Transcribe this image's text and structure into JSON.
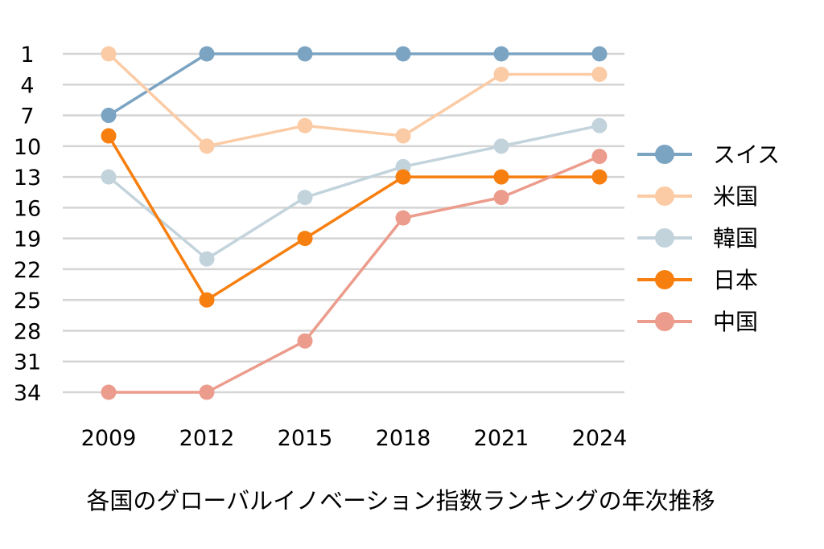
{
  "chart_data": {
    "type": "line",
    "title": "各国のグローバルイノベーション指数ランキングの年次推移",
    "xlabel": "",
    "ylabel": "",
    "y_inverted": true,
    "ylim": [
      1,
      34
    ],
    "yticks": [
      1,
      4,
      7,
      10,
      13,
      16,
      19,
      22,
      25,
      28,
      31,
      34
    ],
    "x": [
      "2009",
      "2012",
      "2015",
      "2018",
      "2021",
      "2024"
    ],
    "grid": true,
    "legend_position": "right",
    "series": [
      {
        "name": "スイス",
        "color": "#7ba3c2",
        "values": [
          7,
          1,
          1,
          1,
          1,
          1
        ]
      },
      {
        "name": "米国",
        "color": "#fbcba5",
        "values": [
          1,
          10,
          8,
          9,
          3,
          3
        ]
      },
      {
        "name": "韓国",
        "color": "#c3d3dc",
        "values": [
          13,
          21,
          15,
          12,
          10,
          8
        ]
      },
      {
        "name": "日本",
        "color": "#f77f10",
        "values": [
          9,
          25,
          19,
          13,
          13,
          13
        ]
      },
      {
        "name": "中国",
        "color": "#ec9c8c",
        "values": [
          34,
          34,
          29,
          17,
          15,
          11
        ]
      }
    ]
  }
}
